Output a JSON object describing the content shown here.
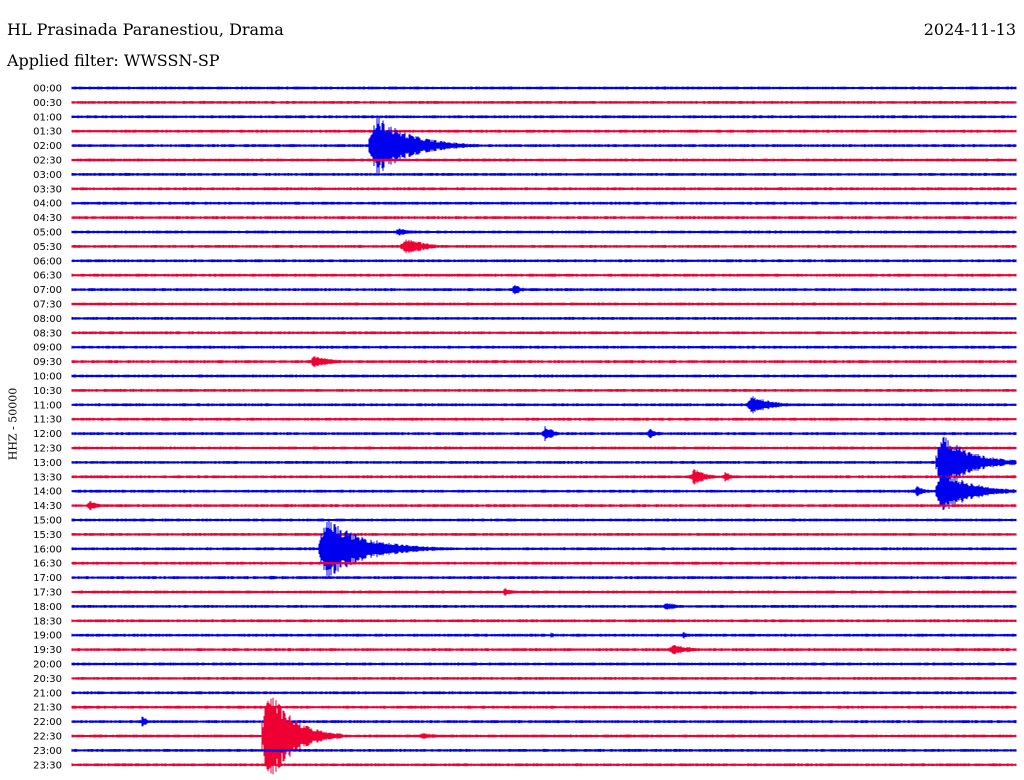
{
  "header": {
    "station": "HL Prasinada Paranestiou, Drama",
    "date": "2024-11-13",
    "filter": "Applied filter: WWSSN-SP"
  },
  "channel_label": "HHZ - 50000",
  "colors": {
    "even_rows": "#0000ee",
    "odd_rows": "#ee0033"
  },
  "chart_data": {
    "type": "helicorder",
    "row_duration_minutes": 30,
    "row_color_pattern": "alternating blue / red starting with blue",
    "time_labels": [
      "00:00",
      "00:30",
      "01:00",
      "01:30",
      "02:00",
      "02:30",
      "03:00",
      "03:30",
      "04:00",
      "04:30",
      "05:00",
      "05:30",
      "06:00",
      "06:30",
      "07:00",
      "07:30",
      "08:00",
      "08:30",
      "09:00",
      "09:30",
      "10:00",
      "10:30",
      "11:00",
      "11:30",
      "12:00",
      "12:30",
      "13:00",
      "13:30",
      "14:00",
      "14:30",
      "15:00",
      "15:30",
      "16:00",
      "16:30",
      "17:00",
      "17:30",
      "18:00",
      "18:30",
      "19:00",
      "19:30",
      "20:00",
      "20:30",
      "21:00",
      "21:30",
      "22:00",
      "22:30",
      "23:00",
      "23:30"
    ],
    "events": [
      {
        "row": 4,
        "minute": 9.5,
        "amplitude": 30,
        "duration_min": 3.5
      },
      {
        "row": 10,
        "minute": 10.3,
        "amplitude": 4,
        "duration_min": 1.5
      },
      {
        "row": 11,
        "minute": 10.5,
        "amplitude": 9,
        "duration_min": 2.0
      },
      {
        "row": 14,
        "minute": 14.0,
        "amplitude": 5,
        "duration_min": 1.0
      },
      {
        "row": 19,
        "minute": 7.6,
        "amplitude": 6,
        "duration_min": 2.0
      },
      {
        "row": 22,
        "minute": 21.5,
        "amplitude": 10,
        "duration_min": 2.0
      },
      {
        "row": 24,
        "minute": 15.0,
        "amplitude": 9,
        "duration_min": 0.8
      },
      {
        "row": 24,
        "minute": 18.3,
        "amplitude": 5,
        "duration_min": 1.0
      },
      {
        "row": 26,
        "minute": 27.5,
        "amplitude": 28,
        "duration_min": 3.0
      },
      {
        "row": 27,
        "minute": 19.7,
        "amplitude": 9,
        "duration_min": 1.2
      },
      {
        "row": 27,
        "minute": 20.7,
        "amplitude": 5,
        "duration_min": 1.0
      },
      {
        "row": 28,
        "minute": 27.5,
        "amplitude": 22,
        "duration_min": 3.0
      },
      {
        "row": 28,
        "minute": 26.8,
        "amplitude": 7,
        "duration_min": 0.8
      },
      {
        "row": 29,
        "minute": 0.5,
        "amplitude": 5,
        "duration_min": 1.0
      },
      {
        "row": 32,
        "minute": 7.9,
        "amplitude": 30,
        "duration_min": 4.0
      },
      {
        "row": 34,
        "minute": 6.3,
        "amplitude": 3,
        "duration_min": 0.6
      },
      {
        "row": 35,
        "minute": 13.7,
        "amplitude": 4,
        "duration_min": 1.0
      },
      {
        "row": 36,
        "minute": 18.8,
        "amplitude": 4,
        "duration_min": 1.6
      },
      {
        "row": 38,
        "minute": 15.2,
        "amplitude": 3,
        "duration_min": 0.6
      },
      {
        "row": 38,
        "minute": 19.4,
        "amplitude": 4,
        "duration_min": 0.5
      },
      {
        "row": 39,
        "minute": 19.0,
        "amplitude": 5,
        "duration_min": 2.2
      },
      {
        "row": 42,
        "minute": 21.5,
        "amplitude": 2,
        "duration_min": 1.0
      },
      {
        "row": 44,
        "minute": 2.2,
        "amplitude": 6,
        "duration_min": 0.6
      },
      {
        "row": 45,
        "minute": 6.1,
        "amplitude": 50,
        "duration_min": 2.5
      },
      {
        "row": 45,
        "minute": 11.0,
        "amplitude": 3,
        "duration_min": 2.5
      }
    ]
  }
}
